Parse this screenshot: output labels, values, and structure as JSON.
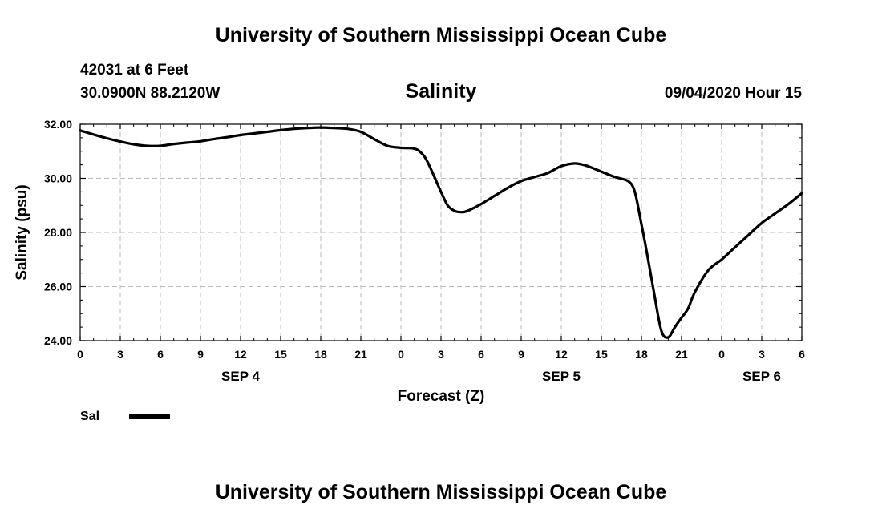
{
  "header": {
    "title": "University of Southern Mississippi Ocean Cube",
    "station": "42031 at 6 Feet",
    "coords": "30.0900N 88.2120W",
    "run_time": "09/04/2020 Hour 15"
  },
  "footer": {
    "title": "University of Southern Mississippi Ocean Cube"
  },
  "legend": {
    "label": "Sal",
    "color": "#000000"
  },
  "chart_data": {
    "type": "line",
    "title": "Salinity",
    "xlabel": "Forecast (Z)",
    "ylabel": "Salinity (psu)",
    "ylim": [
      24,
      32
    ],
    "xlim": [
      0,
      54
    ],
    "grid": true,
    "legend_position": "bottom-left",
    "x_ticks": [
      {
        "hour": 0,
        "label": "0"
      },
      {
        "hour": 3,
        "label": "3"
      },
      {
        "hour": 6,
        "label": "6"
      },
      {
        "hour": 9,
        "label": "9"
      },
      {
        "hour": 12,
        "label": "12"
      },
      {
        "hour": 15,
        "label": "15"
      },
      {
        "hour": 18,
        "label": "18"
      },
      {
        "hour": 21,
        "label": "21"
      },
      {
        "hour": 24,
        "label": "0"
      },
      {
        "hour": 27,
        "label": "3"
      },
      {
        "hour": 30,
        "label": "6"
      },
      {
        "hour": 33,
        "label": "9"
      },
      {
        "hour": 36,
        "label": "12"
      },
      {
        "hour": 39,
        "label": "15"
      },
      {
        "hour": 42,
        "label": "18"
      },
      {
        "hour": 45,
        "label": "21"
      },
      {
        "hour": 48,
        "label": "0"
      },
      {
        "hour": 51,
        "label": "3"
      },
      {
        "hour": 54,
        "label": "6"
      }
    ],
    "day_labels": [
      {
        "hour": 12,
        "label": "SEP 4"
      },
      {
        "hour": 36,
        "label": "SEP 5"
      },
      {
        "hour": 51,
        "label": "SEP 6"
      }
    ],
    "y_ticks": [
      {
        "value": 24,
        "label": "24.00"
      },
      {
        "value": 26,
        "label": "26.00"
      },
      {
        "value": 28,
        "label": "28.00"
      },
      {
        "value": 30,
        "label": "30.00"
      },
      {
        "value": 32,
        "label": "32.00"
      }
    ],
    "series": [
      {
        "name": "Sal",
        "x": [
          0,
          1,
          2,
          3,
          4,
          5,
          6,
          7,
          8,
          9,
          10,
          11,
          12,
          13,
          14,
          15,
          16,
          17,
          18,
          19,
          20,
          21,
          22,
          23,
          24,
          25,
          25.5,
          26,
          27,
          27.5,
          28,
          28.5,
          29,
          30,
          31,
          32,
          33,
          34,
          35,
          36,
          37,
          37.8,
          38.5,
          39,
          40,
          41,
          41.5,
          42,
          42.5,
          43,
          43.5,
          44,
          44.5,
          45,
          45.5,
          46,
          47,
          48,
          49,
          50,
          51,
          52,
          53,
          54
        ],
        "values": [
          31.77,
          31.62,
          31.48,
          31.36,
          31.26,
          31.2,
          31.2,
          31.27,
          31.32,
          31.37,
          31.45,
          31.52,
          31.6,
          31.66,
          31.72,
          31.78,
          31.83,
          31.86,
          31.88,
          31.86,
          31.83,
          31.72,
          31.45,
          31.2,
          31.13,
          31.1,
          30.95,
          30.6,
          29.5,
          29.0,
          28.8,
          28.75,
          28.8,
          29.05,
          29.35,
          29.65,
          29.9,
          30.05,
          30.2,
          30.45,
          30.55,
          30.48,
          30.35,
          30.25,
          30.05,
          29.9,
          29.5,
          28.3,
          27.0,
          25.6,
          24.35,
          24.12,
          24.5,
          24.85,
          25.2,
          25.8,
          26.6,
          27.0,
          27.45,
          27.9,
          28.35,
          28.7,
          29.05,
          29.45
        ]
      }
    ]
  }
}
